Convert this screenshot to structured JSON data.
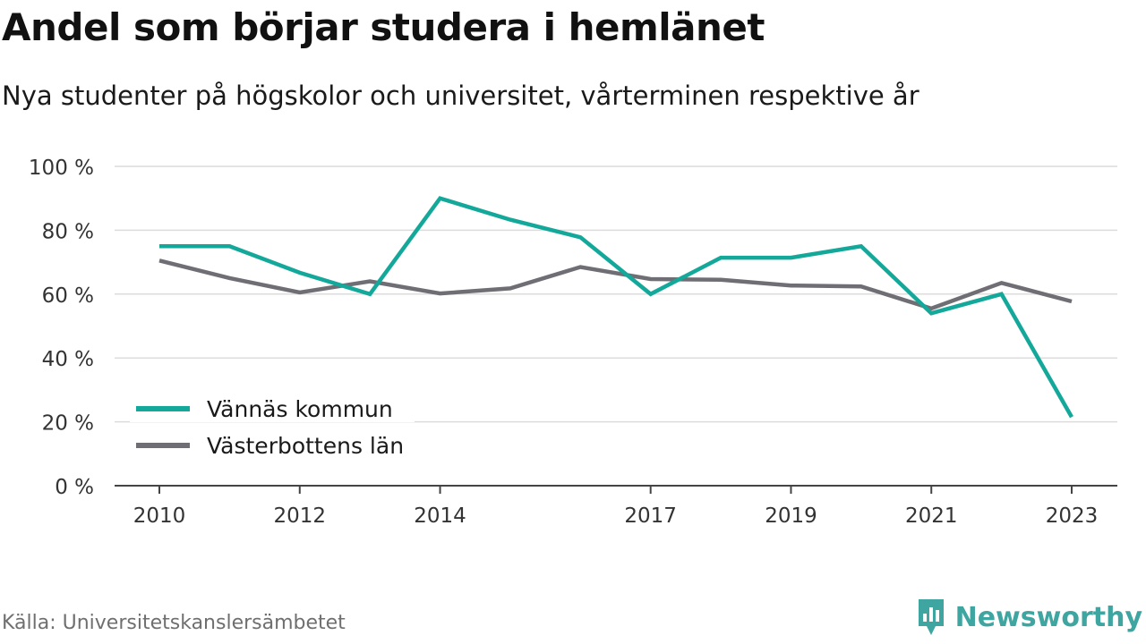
{
  "title": "Andel som börjar studera i hemlänet",
  "subtitle": "Nya studenter på högskolor och universitet, vårterminen respektive år",
  "source": "Källa: Universitetskanslersämbetet",
  "brand": {
    "name": "Newsworthy",
    "icon": "newsworthy-logo-icon",
    "color": "#3fa5a0"
  },
  "chart_data": {
    "type": "line",
    "x": [
      2010,
      2011,
      2012,
      2013,
      2014,
      2015,
      2016,
      2017,
      2018,
      2019,
      2020,
      2021,
      2022,
      2023
    ],
    "x_tick_labels": [
      "2010",
      "2012",
      "2014",
      "2017",
      "2019",
      "2021",
      "2023"
    ],
    "y_ticks": [
      0,
      20,
      40,
      60,
      80,
      100
    ],
    "y_tick_labels": [
      "0 %",
      "20 %",
      "40 %",
      "60 %",
      "80 %",
      "100 %"
    ],
    "ylim": [
      0,
      100
    ],
    "grid": true,
    "legend_position": "bottom-left",
    "series": [
      {
        "name": "Vännäs kommun",
        "color": "#14a89a",
        "values": [
          75,
          75,
          66.7,
          60,
          90,
          83.3,
          77.8,
          60,
          71.4,
          71.4,
          75,
          54,
          60,
          21.5
        ]
      },
      {
        "name": "Västerbottens län",
        "color": "#6e6e74",
        "values": [
          70.5,
          65,
          60.5,
          64,
          60.2,
          61.8,
          68.5,
          64.7,
          64.5,
          62.7,
          62.4,
          55.5,
          63.5,
          57.7
        ]
      }
    ]
  }
}
